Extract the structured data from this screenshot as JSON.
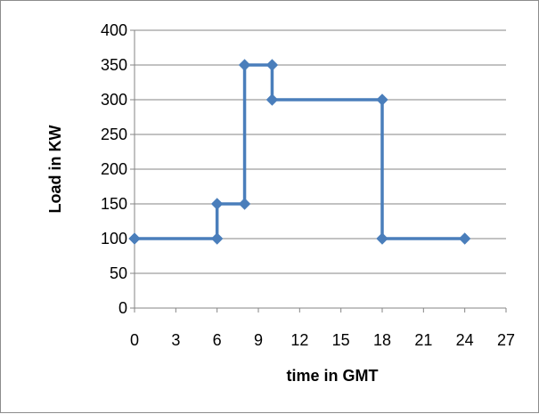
{
  "chart_data": {
    "type": "line",
    "title": "",
    "xlabel": "time in GMT",
    "ylabel": "Load in KW",
    "xlim": [
      0,
      27
    ],
    "ylim": [
      0,
      400
    ],
    "xticks": [
      0,
      3,
      6,
      9,
      12,
      15,
      18,
      21,
      24,
      27
    ],
    "yticks": [
      0,
      50,
      100,
      150,
      200,
      250,
      300,
      350,
      400
    ],
    "grid": "horizontal",
    "legend": "none",
    "series": [
      {
        "color": "#4a7ebb",
        "x": [
          0,
          6,
          6,
          8,
          8,
          10,
          10,
          18,
          18,
          24
        ],
        "y": [
          100,
          100,
          150,
          150,
          350,
          350,
          300,
          300,
          100,
          100
        ]
      }
    ]
  }
}
